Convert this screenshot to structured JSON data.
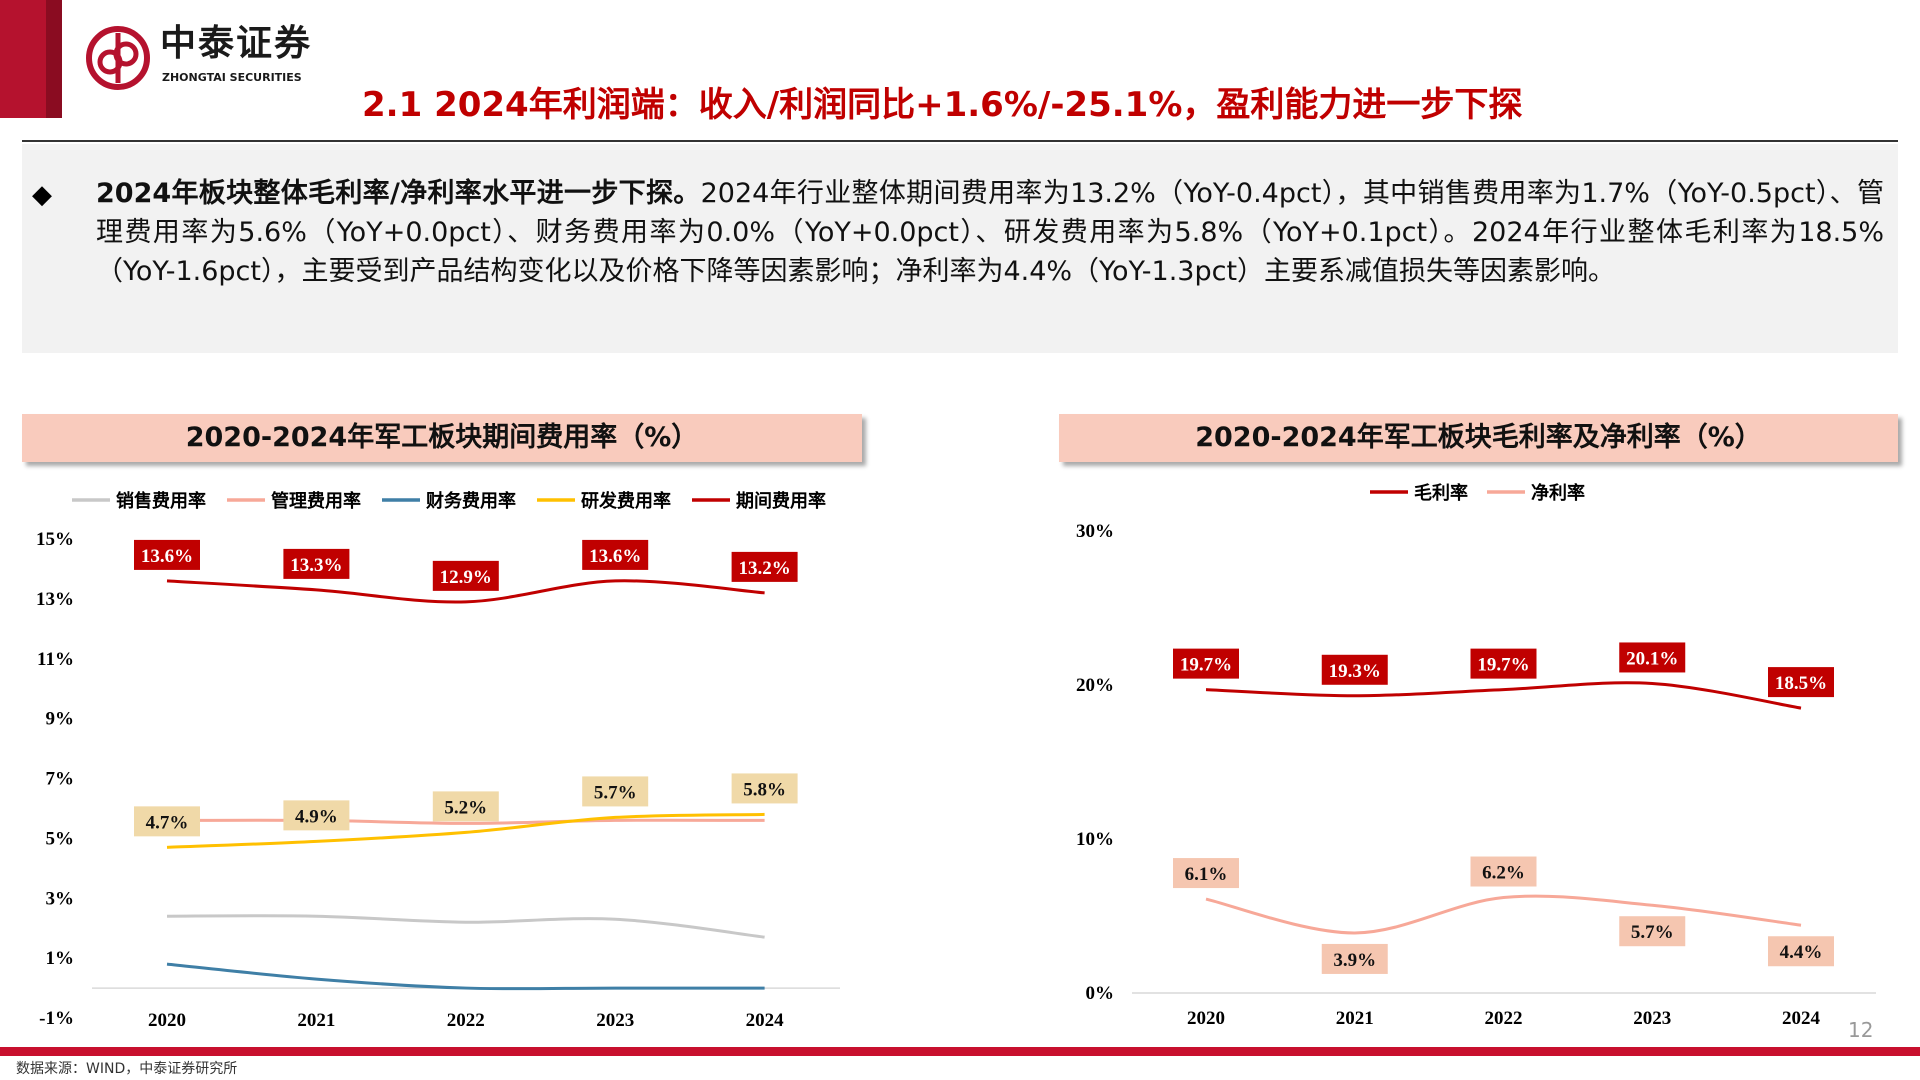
{
  "header": {
    "logo_cn": "中泰证券",
    "logo_en": "ZHONGTAI SECURITIES",
    "title": "2.1 2024年利润端：收入/利润同比+1.6%/-25.1%，盈利能力进一步下探"
  },
  "summary": {
    "bold": "2024年板块整体毛利率/净利率水平进一步下探。",
    "text": "2024年行业整体期间费用率为13.2%（YoY-0.4pct），其中销售费用率为1.7%（YoY-0.5pct）、管理费用率为5.6%（YoY+0.0pct）、财务费用率为0.0%（YoY+0.0pct）、研发费用率为5.8%（YoY+0.1pct）。2024年行业整体毛利率为18.5%（YoY-1.6pct），主要受到产品结构变化以及价格下降等因素影响；净利率为4.4%（YoY-1.3pct）主要系减值损失等因素影响。"
  },
  "chart_data": [
    {
      "type": "line",
      "title": "2020-2024年军工板块期间费用率（%）",
      "categories": [
        "2020",
        "2021",
        "2022",
        "2023",
        "2024"
      ],
      "yticks": [
        "-1%",
        "1%",
        "3%",
        "5%",
        "7%",
        "9%",
        "11%",
        "13%",
        "15%"
      ],
      "ylim": [
        -1,
        15
      ],
      "legend": "top",
      "series": [
        {
          "name": "销售费用率",
          "color": "#c8c8c8",
          "values": [
            2.4,
            2.4,
            2.2,
            2.3,
            1.7
          ],
          "labels": false
        },
        {
          "name": "管理费用率",
          "color": "#f7a898",
          "values": [
            5.6,
            5.6,
            5.5,
            5.6,
            5.6
          ],
          "labels": false
        },
        {
          "name": "财务费用率",
          "color": "#3f7fa6",
          "values": [
            0.8,
            0.3,
            0.0,
            0.0,
            0.0
          ],
          "labels": false
        },
        {
          "name": "研发费用率",
          "color": "#ffc000",
          "values": [
            4.7,
            4.9,
            5.2,
            5.7,
            5.8
          ],
          "labels": true,
          "label_bg": "#f0d9a8",
          "label_color": "#111"
        },
        {
          "name": "期间费用率",
          "color": "#c00000",
          "values": [
            13.6,
            13.3,
            12.9,
            13.6,
            13.2
          ],
          "labels": true,
          "label_bg": "#c00000",
          "label_color": "#fff"
        }
      ]
    },
    {
      "type": "line",
      "title": "2020-2024年军工板块毛利率及净利率（%）",
      "categories": [
        "2020",
        "2021",
        "2022",
        "2023",
        "2024"
      ],
      "yticks": [
        "0%",
        "10%",
        "20%",
        "30%"
      ],
      "ylim": [
        0,
        30
      ],
      "legend": "top",
      "series": [
        {
          "name": "毛利率",
          "color": "#c00000",
          "values": [
            19.7,
            19.3,
            19.7,
            20.1,
            18.5
          ],
          "labels": true,
          "label_bg": "#c00000",
          "label_color": "#fff"
        },
        {
          "name": "净利率",
          "color": "#f7a898",
          "values": [
            6.1,
            3.9,
            6.2,
            5.7,
            4.4
          ],
          "labels": true,
          "label_bg": "#f5c6b0",
          "label_color": "#111"
        }
      ]
    }
  ],
  "footer": {
    "source": "数据来源：WIND，中泰证券研究所",
    "page": "12"
  }
}
